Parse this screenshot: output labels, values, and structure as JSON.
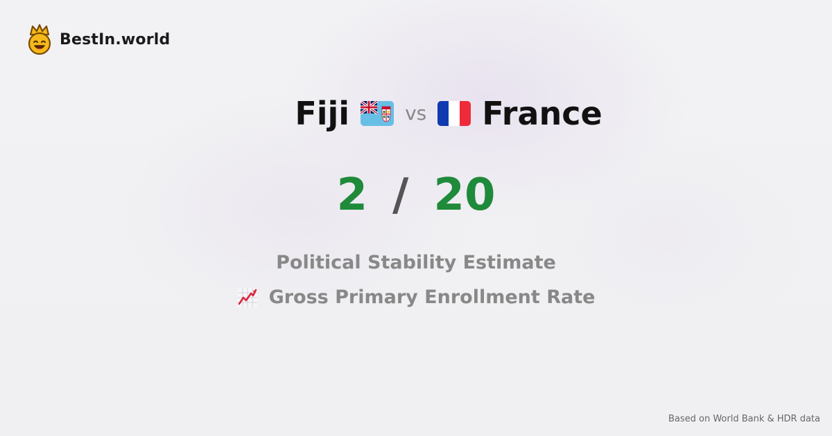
{
  "brand": {
    "name": "BestIn.world",
    "logo_icon": "smiling-crown-icon"
  },
  "comparison": {
    "left_country": "Fiji",
    "left_flag_icon": "fiji-flag-icon",
    "vs_label": "vs",
    "right_country": "France",
    "right_flag_icon": "france-flag-icon"
  },
  "scores": {
    "left": "2",
    "separator": "/",
    "right": "20",
    "color": "#1f8a3a"
  },
  "metrics": {
    "primary": "Political Stability Estimate",
    "secondary": "Gross Primary Enrollment Rate",
    "secondary_icon": "chart-increasing-icon"
  },
  "footer": {
    "source_note": "Based on World Bank & HDR data"
  }
}
